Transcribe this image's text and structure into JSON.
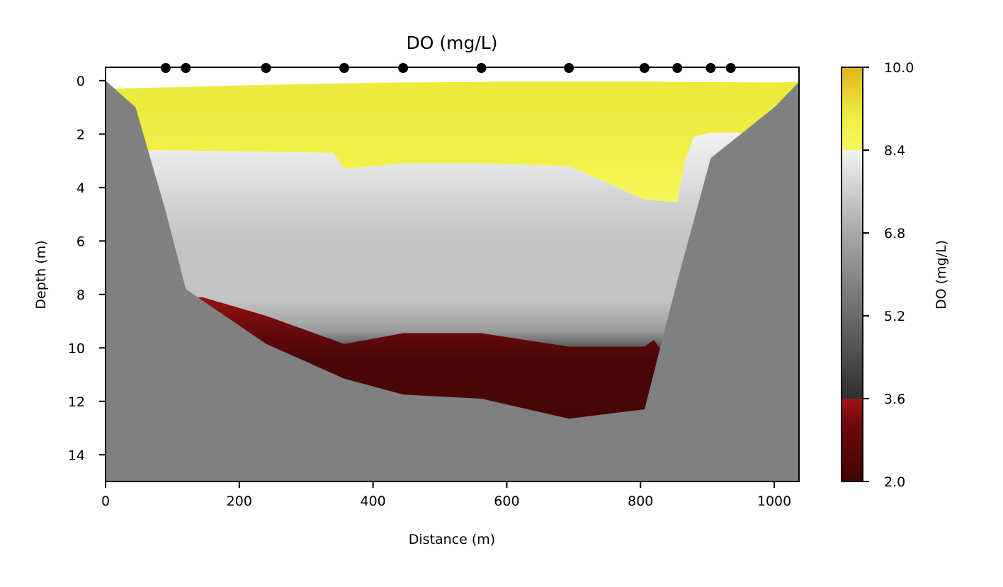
{
  "chart_data": {
    "type": "heatmap",
    "title": "DO (mg/L)",
    "xlabel": "Distance (m)",
    "ylabel": "Depth (m)",
    "xlim": [
      0,
      1037
    ],
    "ylim": [
      15,
      -0.5
    ],
    "x_ticks": [
      0,
      200,
      400,
      600,
      800,
      1000
    ],
    "y_ticks": [
      0,
      2,
      4,
      6,
      8,
      10,
      12,
      14
    ],
    "grid": false,
    "colorbar": {
      "label": "DO (mg/L)",
      "range": [
        2.0,
        10.0
      ],
      "ticks": [
        "10.0",
        "8.4",
        "6.8",
        "5.2",
        "3.6",
        "2.0"
      ],
      "tick_values": [
        10.0,
        8.4,
        6.8,
        5.2,
        3.6,
        2.0
      ],
      "colors": {
        "low_dark": "#3f0506",
        "low_mid": "#7b0c0e",
        "low_top": "#a51416",
        "mid_dark": "#2f2f2f",
        "mid_gray": "#8a8a8a",
        "mid_light": "#f3f3f3",
        "high_bright": "#f5f85a",
        "high_gold": "#e3b41d"
      }
    },
    "sample_stations": [
      90,
      120,
      240,
      357,
      445,
      562,
      693,
      806,
      855,
      905,
      935
    ],
    "zones": [
      {
        "name": "high (>8.4 mg/L)",
        "color": "#eeee40"
      },
      {
        "name": "mid (3.6–8.4 mg/L)",
        "color": "#c8c8c8"
      },
      {
        "name": "low (<3.6 mg/L)",
        "color": "#4a0607"
      },
      {
        "name": "bed",
        "color": "#808080"
      }
    ],
    "bed_profile": {
      "x": [
        0,
        45,
        90,
        120,
        240,
        357,
        445,
        562,
        693,
        806,
        855,
        905,
        935,
        1000,
        1037
      ],
      "depth": [
        0,
        1,
        4.9,
        7.8,
        9.85,
        11.15,
        11.75,
        11.9,
        12.65,
        12.3,
        7.5,
        2.9,
        2.3,
        1.0,
        0.05
      ]
    },
    "surface_profile": {
      "x": [
        15,
        200,
        400,
        600,
        800,
        1000,
        1037
      ],
      "depth": [
        0.3,
        0.18,
        0.08,
        0.04,
        0.04,
        0.07,
        0.05
      ]
    },
    "upper_isoline_8_4": {
      "x": [
        67,
        200,
        340,
        347,
        357,
        445,
        562,
        693,
        730,
        806,
        855,
        866,
        880,
        905,
        935,
        1000
      ],
      "depth": [
        2.6,
        2.65,
        2.7,
        2.95,
        3.3,
        3.1,
        3.1,
        3.2,
        3.6,
        4.45,
        4.55,
        3.0,
        2.1,
        1.95,
        1.95,
        1.95
      ]
    },
    "lower_isoline_3_6": {
      "x": [
        145,
        240,
        357,
        445,
        562,
        693,
        806,
        820,
        829
      ],
      "depth": [
        8.1,
        8.8,
        9.85,
        9.45,
        9.45,
        9.95,
        9.95,
        9.7,
        10.0
      ]
    }
  }
}
